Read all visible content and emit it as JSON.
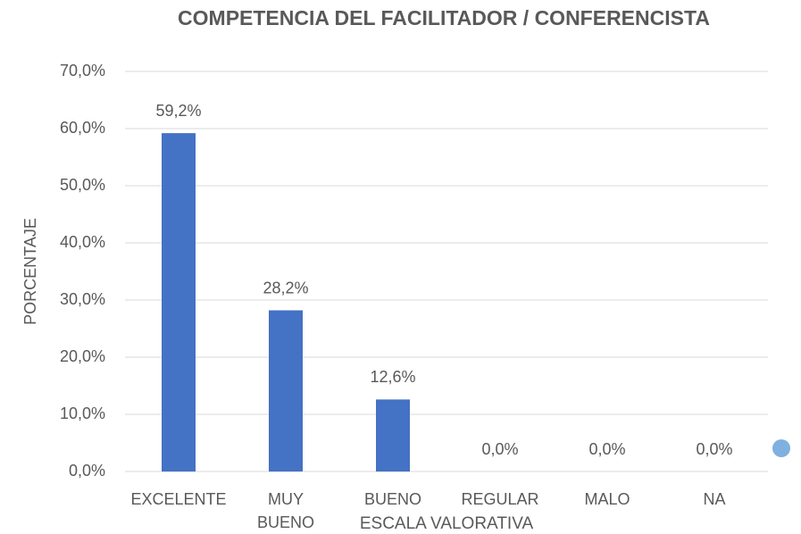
{
  "chart_data": {
    "type": "bar",
    "title": "COMPETENCIA DEL FACILITADOR / CONFERENCISTA",
    "x_label": "ESCALA VALORATIVA",
    "y_label": "PORCENTAJE",
    "categories": [
      "EXCELENTE",
      "MUY BUENO",
      "BUENO",
      "REGULAR",
      "MALO",
      "NA"
    ],
    "values": [
      59.2,
      28.2,
      12.6,
      0,
      0,
      0
    ],
    "value_labels": [
      "59,2%",
      "28,2%",
      "12,6%",
      "0,0%",
      "0,0%",
      "0,0%"
    ],
    "color": "#4472c4",
    "ylim": [
      0,
      70
    ],
    "yticks": [
      {
        "value": 0,
        "label": "0,0%"
      },
      {
        "value": 10,
        "label": "10,0%"
      },
      {
        "value": 20,
        "label": "20,0%"
      },
      {
        "value": 30,
        "label": "30,0%"
      },
      {
        "value": 40,
        "label": "40,0%"
      },
      {
        "value": 50,
        "label": "50,0%"
      },
      {
        "value": 60,
        "label": "60,0%"
      },
      {
        "value": 70,
        "label": "70,0%"
      }
    ],
    "grid": true
  }
}
